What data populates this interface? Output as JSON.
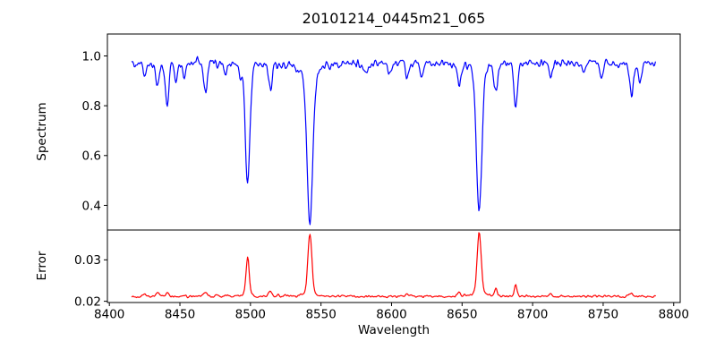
{
  "title": "20101214_0445m21_065",
  "chart_data": {
    "type": "line",
    "title": "20101214_0445m21_065",
    "xlabel": "Wavelength",
    "x_range": [
      8398.6,
      8804.6
    ],
    "x_ticks": [
      8400,
      8450,
      8500,
      8550,
      8600,
      8650,
      8700,
      8750,
      8800
    ],
    "x_tick_labels": [
      "8400",
      "8450",
      "8500",
      "8550",
      "8600",
      "8650",
      "8700",
      "8750",
      "8800"
    ],
    "data_x_span": [
      8416,
      8787
    ],
    "n_points": 680,
    "axis_color": "#000000",
    "background": "#ffffff",
    "grid": false,
    "legend": "none",
    "panels": [
      {
        "name": "spectrum",
        "ylabel": "Spectrum",
        "color": "#0000ff",
        "y_ticks": [
          1.0,
          0.8,
          0.6,
          0.4
        ],
        "y_tick_labels": [
          "1.0",
          "0.8",
          "0.6",
          "0.4"
        ],
        "y_range": [
          0.301,
          1.088
        ],
        "continuum": 0.972,
        "noise_sigma": 0.0135,
        "seed": 42,
        "absorption_lines": [
          {
            "center": 8425.0,
            "depth": 0.055,
            "sigma": 1.1
          },
          {
            "center": 8434.0,
            "depth": 0.105,
            "sigma": 1.2
          },
          {
            "center": 8441.0,
            "depth": 0.17,
            "sigma": 1.3
          },
          {
            "center": 8447.0,
            "depth": 0.075,
            "sigma": 1.1
          },
          {
            "center": 8453.0,
            "depth": 0.06,
            "sigma": 1.0
          },
          {
            "center": 8468.0,
            "depth": 0.115,
            "sigma": 1.3
          },
          {
            "center": 8482.0,
            "depth": 0.045,
            "sigma": 1.0
          },
          {
            "center": 8493.0,
            "depth": 0.05,
            "sigma": 1.0
          },
          {
            "center": 8498.0,
            "depth": 0.455,
            "sigma": 1.6,
            "wing_depth": 0.028,
            "wing_gamma": 4
          },
          {
            "center": 8514.0,
            "depth": 0.11,
            "sigma": 1.3
          },
          {
            "center": 8542.1,
            "depth": 0.58,
            "sigma": 2.0,
            "wing_depth": 0.06,
            "wing_gamma": 6
          },
          {
            "center": 8582.0,
            "depth": 0.05,
            "sigma": 1.1
          },
          {
            "center": 8598.0,
            "depth": 0.045,
            "sigma": 1.0
          },
          {
            "center": 8611.0,
            "depth": 0.065,
            "sigma": 1.1
          },
          {
            "center": 8621.0,
            "depth": 0.05,
            "sigma": 1.0
          },
          {
            "center": 8648.0,
            "depth": 0.085,
            "sigma": 1.2
          },
          {
            "center": 8662.1,
            "depth": 0.545,
            "sigma": 1.9,
            "wing_depth": 0.048,
            "wing_gamma": 5
          },
          {
            "center": 8674.0,
            "depth": 0.125,
            "sigma": 1.2
          },
          {
            "center": 8688.0,
            "depth": 0.165,
            "sigma": 1.3
          },
          {
            "center": 8713.0,
            "depth": 0.06,
            "sigma": 1.1
          },
          {
            "center": 8736.0,
            "depth": 0.05,
            "sigma": 1.1
          },
          {
            "center": 8749.0,
            "depth": 0.065,
            "sigma": 1.1
          },
          {
            "center": 8770.0,
            "depth": 0.13,
            "sigma": 1.3
          },
          {
            "center": 8776.0,
            "depth": 0.095,
            "sigma": 1.1
          }
        ]
      },
      {
        "name": "error",
        "ylabel": "Error",
        "color": "#ff0000",
        "y_ticks": [
          0.03,
          0.02
        ],
        "y_tick_labels": [
          "0.03",
          "0.02"
        ],
        "y_range": [
          0.0197,
          0.0372
        ],
        "baseline": 0.0212,
        "noise_sigma": 0.00023,
        "seed": 1337,
        "peaks": [
          {
            "center": 8425.0,
            "height": 0.0006,
            "sigma": 1.0
          },
          {
            "center": 8434.0,
            "height": 0.0009,
            "sigma": 1.1
          },
          {
            "center": 8441.0,
            "height": 0.0009,
            "sigma": 1.1
          },
          {
            "center": 8468.0,
            "height": 0.0012,
            "sigma": 1.1
          },
          {
            "center": 8498.0,
            "height": 0.009,
            "sigma": 1.1,
            "wing_height": 0.0006,
            "wing_gamma": 3
          },
          {
            "center": 8514.0,
            "height": 0.0013,
            "sigma": 1.1
          },
          {
            "center": 8542.1,
            "height": 0.014,
            "sigma": 1.4,
            "wing_height": 0.0013,
            "wing_gamma": 4
          },
          {
            "center": 8611.0,
            "height": 0.0005,
            "sigma": 1.0
          },
          {
            "center": 8648.0,
            "height": 0.001,
            "sigma": 1.0
          },
          {
            "center": 8662.1,
            "height": 0.0143,
            "sigma": 1.4,
            "wing_height": 0.0013,
            "wing_gamma": 4
          },
          {
            "center": 8674.0,
            "height": 0.0016,
            "sigma": 1.0
          },
          {
            "center": 8688.0,
            "height": 0.0026,
            "sigma": 1.0
          },
          {
            "center": 8713.0,
            "height": 0.0006,
            "sigma": 1.0
          },
          {
            "center": 8770.0,
            "height": 0.0008,
            "sigma": 1.0
          }
        ]
      }
    ]
  }
}
